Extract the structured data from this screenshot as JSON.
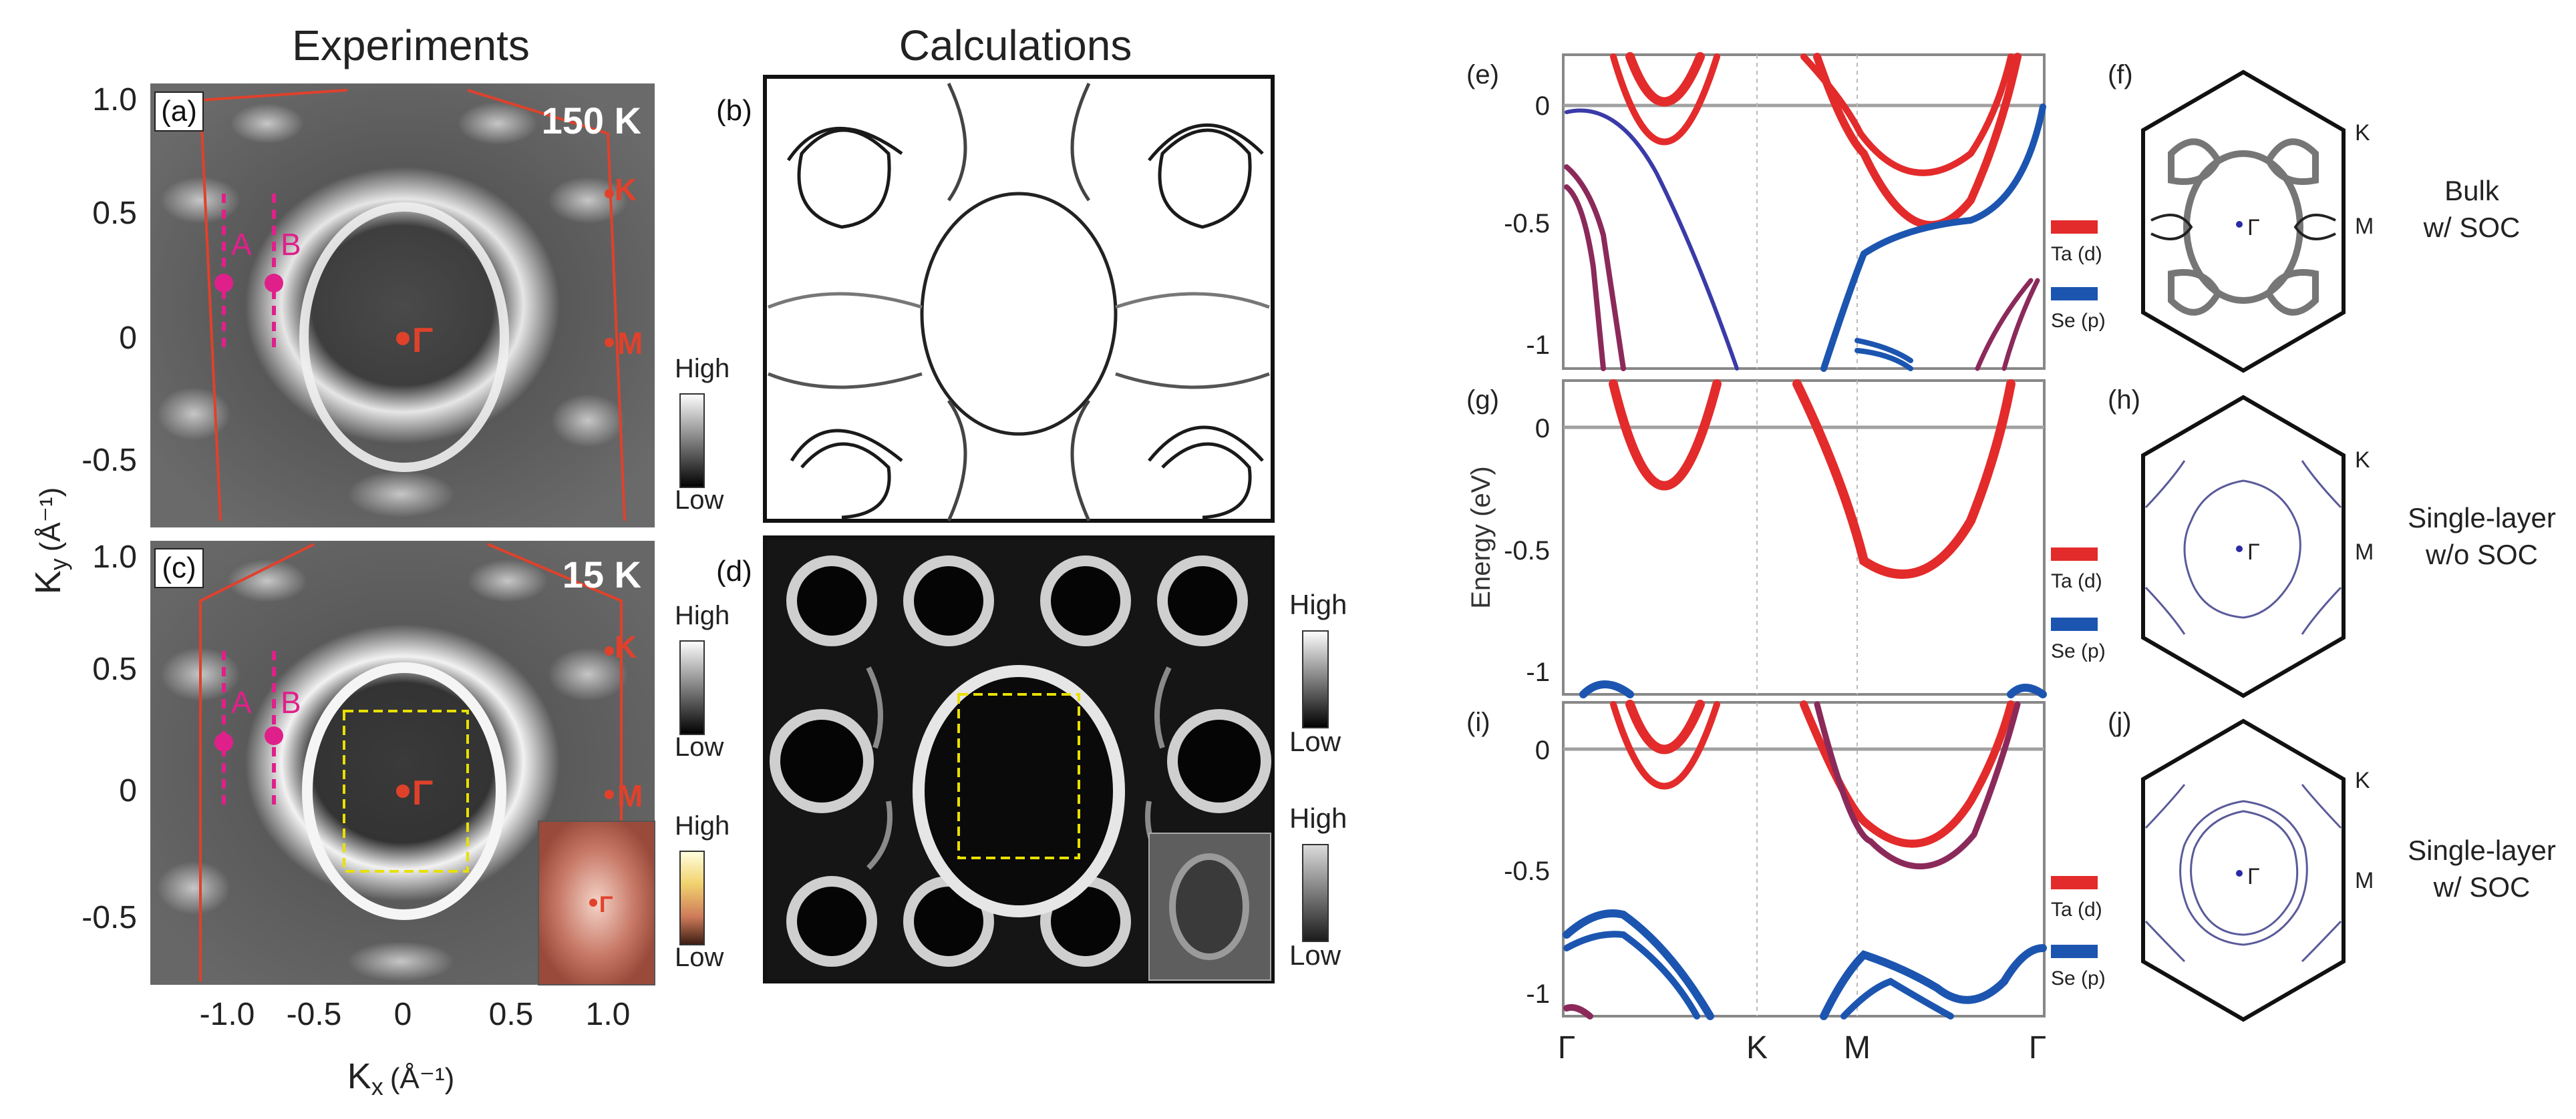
{
  "headers": {
    "experiments": "Experiments",
    "calculations": "Calculations"
  },
  "axes": {
    "ky_label": "K",
    "ky_sub": "y",
    "ky_unit": "(Å⁻¹)",
    "kx_label": "K",
    "kx_sub": "x",
    "kx_unit": "(Å⁻¹)",
    "y_ticks": [
      "1.0",
      "0.5",
      "0",
      "-0.5"
    ],
    "x_ticks": [
      "-1.0",
      "-0.5",
      "0",
      "0.5",
      "1.0"
    ],
    "energy_label": "Energy (eV)",
    "energy_ticks": [
      "0",
      "-0.5",
      "-1"
    ],
    "kpath": [
      "Γ",
      "K",
      "M",
      "Γ"
    ]
  },
  "panels": {
    "a": {
      "label": "(a)",
      "temp": "150 K"
    },
    "b": {
      "label": "(b)"
    },
    "c": {
      "label": "(c)",
      "temp": "15 K"
    },
    "d": {
      "label": "(d)"
    },
    "e": {
      "label": "(e)"
    },
    "f": {
      "label": "(f)",
      "caption_1": "Bulk",
      "caption_2": "w/ SOC"
    },
    "g": {
      "label": "(g)"
    },
    "h": {
      "label": "(h)",
      "caption_1": "Single-layer",
      "caption_2": "w/o SOC"
    },
    "i": {
      "label": "(i)"
    },
    "j": {
      "label": "(j)",
      "caption_1": "Single-layer",
      "caption_2": "w/ SOC"
    }
  },
  "markers": {
    "A": "A",
    "B": "B",
    "K": "K",
    "M": "M",
    "Gamma": "Γ"
  },
  "colorbar": {
    "high": "High",
    "low": "Low"
  },
  "legend": {
    "ta": "Ta (d)",
    "se": "Se (p)"
  },
  "colors": {
    "ta": "#e32b2b",
    "se": "#1c55b0",
    "zone": "#e0412b",
    "cut": "#e0208a",
    "box": "#e8e000"
  }
}
